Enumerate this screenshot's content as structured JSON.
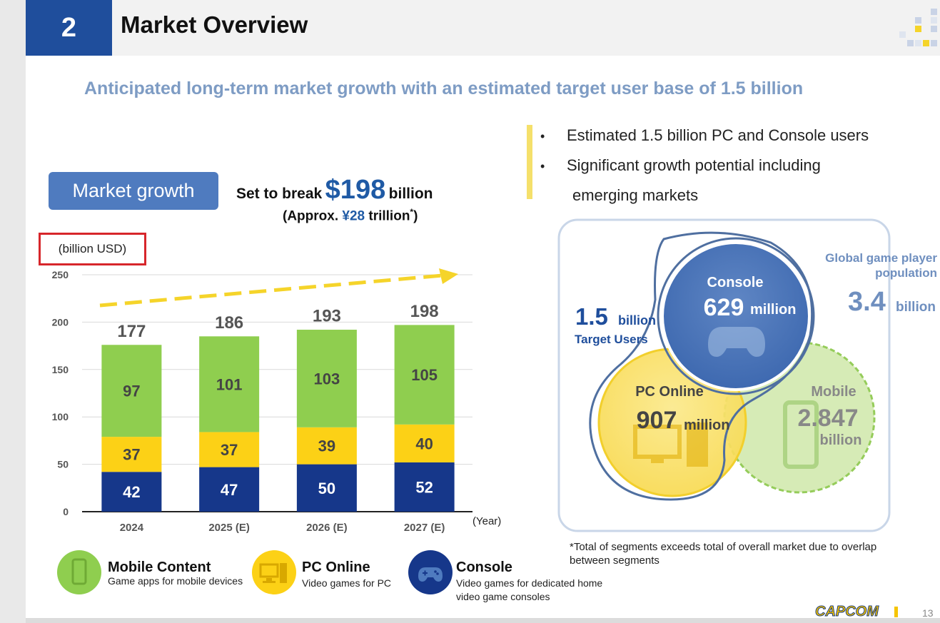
{
  "header": {
    "section_number": "2",
    "section_title": "Market Overview",
    "subtitle": "Anticipated long-term market growth with an estimated target user base of 1.5 billion"
  },
  "bullets": [
    "Estimated 1.5 billion PC and Console users",
    "Significant growth potential including",
    "emerging markets"
  ],
  "market": {
    "pill": "Market growth",
    "headline_pre": "Set to break",
    "headline_value": "$198",
    "headline_post": "billion",
    "approx_pre": "(Approx. ",
    "approx_value": "¥28",
    "approx_post": " trillion",
    "approx_mark": "*",
    "approx_close": ")",
    "unit_label": "(billion  USD)"
  },
  "colors": {
    "mobile": "#8fce4f",
    "pc": "#fcd116",
    "console": "#16378a",
    "accent": "#1f5aa5",
    "arrow": "#f5d42a"
  },
  "chart_data": {
    "type": "bar",
    "stacked": true,
    "categories": [
      "2024",
      "2025 (E)",
      "2026 (E)",
      "2027 (E)"
    ],
    "series": [
      {
        "name": "Console",
        "values": [
          42,
          47,
          50,
          52
        ],
        "color": "#16378a"
      },
      {
        "name": "PC Online",
        "values": [
          37,
          37,
          39,
          40
        ],
        "color": "#fcd116"
      },
      {
        "name": "Mobile Content",
        "values": [
          97,
          101,
          103,
          105
        ],
        "color": "#8fce4f"
      }
    ],
    "totals": [
      177,
      186,
      193,
      198
    ],
    "ylim": [
      0,
      250
    ],
    "yticks": [
      0,
      50,
      100,
      150,
      200,
      250
    ],
    "xlabel": "(Year)",
    "ylabel": "(billion  USD)",
    "grid": true,
    "trend_arrow": true
  },
  "legend": [
    {
      "title": "Mobile Content",
      "desc": "Game apps for mobile devices",
      "icon": "smartphone-icon"
    },
    {
      "title": "PC Online",
      "desc": "Video games for PC",
      "icon": "desktop-pc-icon"
    },
    {
      "title": "Console",
      "desc": "Video games for dedicated home video game consoles",
      "icon": "gamepad-icon"
    }
  ],
  "venn": {
    "target_value": "1.5",
    "target_unit": "billion",
    "target_label": "Target Users",
    "global_label_1": "Global game player",
    "global_label_2": "population",
    "global_value": "3.4",
    "global_unit": "billion",
    "console_label": "Console",
    "console_value": "629",
    "console_unit": "million",
    "pc_label": "PC Online",
    "pc_value": "907",
    "pc_unit": "million",
    "mobile_label": "Mobile",
    "mobile_value": "2.847",
    "mobile_unit": "billion",
    "note": "*Total of segments exceeds total of overall market due to overlap between segments"
  },
  "footer": {
    "brand": "CAPCOM",
    "page": "13"
  }
}
